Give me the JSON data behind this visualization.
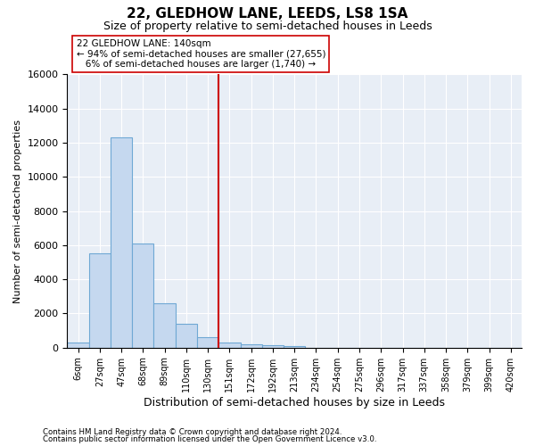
{
  "title1": "22, GLEDHOW LANE, LEEDS, LS8 1SA",
  "title2": "Size of property relative to semi-detached houses in Leeds",
  "xlabel": "Distribution of semi-detached houses by size in Leeds",
  "ylabel": "Number of semi-detached properties",
  "bar_labels": [
    "6sqm",
    "27sqm",
    "47sqm",
    "68sqm",
    "89sqm",
    "110sqm",
    "130sqm",
    "151sqm",
    "172sqm",
    "192sqm",
    "213sqm",
    "234sqm",
    "254sqm",
    "275sqm",
    "296sqm",
    "317sqm",
    "337sqm",
    "358sqm",
    "379sqm",
    "399sqm",
    "420sqm"
  ],
  "bar_values": [
    300,
    5500,
    12300,
    6100,
    2600,
    1400,
    600,
    300,
    200,
    150,
    100,
    0,
    0,
    0,
    0,
    0,
    0,
    0,
    0,
    0,
    0
  ],
  "bar_color": "#c5d8ef",
  "bar_edge_color": "#6fa8d4",
  "vline_x": 6.5,
  "marker_label": "22 GLEDHOW LANE: 140sqm",
  "pct_smaller": "94% of semi-detached houses are smaller (27,655)",
  "pct_larger": "6% of semi-detached houses are larger (1,740)",
  "vline_color": "#cc0000",
  "ylim": [
    0,
    16000
  ],
  "yticks": [
    0,
    2000,
    4000,
    6000,
    8000,
    10000,
    12000,
    14000,
    16000
  ],
  "footnote1": "Contains HM Land Registry data © Crown copyright and database right 2024.",
  "footnote2": "Contains public sector information licensed under the Open Government Licence v3.0.",
  "plot_bg": "#e8eef6"
}
